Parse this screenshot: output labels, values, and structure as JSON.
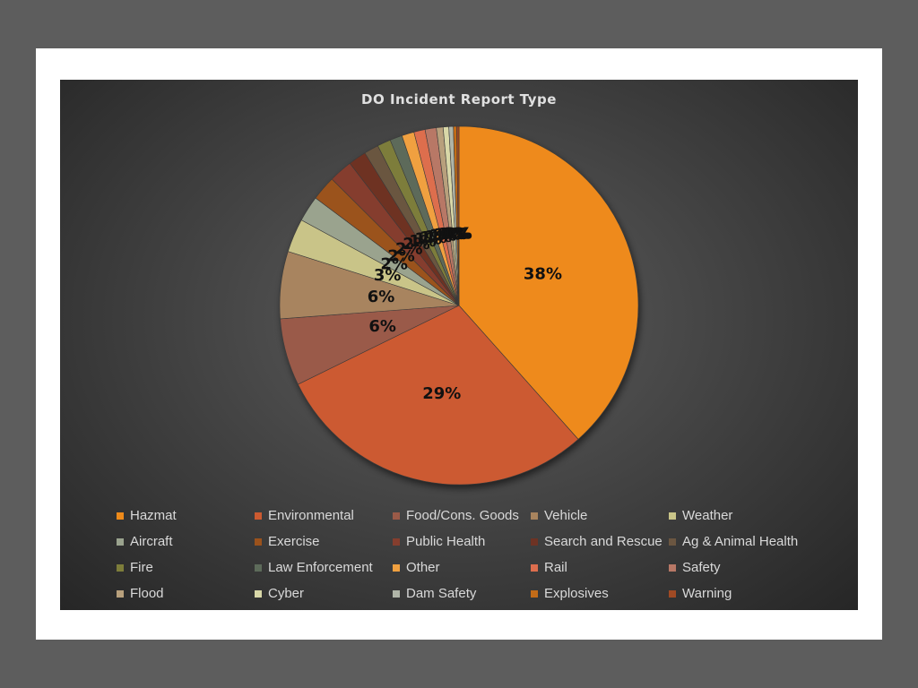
{
  "chart_data": {
    "type": "pie",
    "title": "DO Incident Report Type",
    "legend_position": "bottom",
    "slices": [
      {
        "label": "Hazmat",
        "value": 38,
        "display": "38%",
        "color": "#ee8a1a"
      },
      {
        "label": "Environmental",
        "value": 29,
        "display": "29%",
        "color": "#cc5a30"
      },
      {
        "label": "Food/Cons. Goods",
        "value": 6,
        "display": "6%",
        "color": "#9a5a48"
      },
      {
        "label": "Vehicle",
        "value": 6,
        "display": "6%",
        "color": "#a8845e"
      },
      {
        "label": "Weather",
        "value": 3,
        "display": "3%",
        "color": "#c9c488"
      },
      {
        "label": "Aircraft",
        "value": 2.3,
        "display": "2%",
        "color": "#9aa38e"
      },
      {
        "label": "Exercise",
        "value": 2.2,
        "display": "2%",
        "color": "#9b521c"
      },
      {
        "label": "Public Health",
        "value": 2.1,
        "display": "2%",
        "color": "#853e2e"
      },
      {
        "label": "Search and Rescue",
        "value": 1.6,
        "display": "2%",
        "color": "#6e3324"
      },
      {
        "label": "Ag & Animal Health",
        "value": 1.3,
        "display": "1%",
        "color": "#6b5641"
      },
      {
        "label": "Fire",
        "value": 1.2,
        "display": "1%",
        "color": "#7d7d3a"
      },
      {
        "label": "Law Enforcement",
        "value": 1.1,
        "display": "1%",
        "color": "#5d6b5a"
      },
      {
        "label": "Other",
        "value": 1.1,
        "display": "1%",
        "color": "#f0a040"
      },
      {
        "label": "Rail",
        "value": 1.0,
        "display": "1%",
        "color": "#dd6e4e"
      },
      {
        "label": "Safety",
        "value": 1.0,
        "display": "1%",
        "color": "#b87866"
      },
      {
        "label": "Flood",
        "value": 0.6,
        "display": "1%",
        "color": "#b8a07c"
      },
      {
        "label": "Cyber",
        "value": 0.5,
        "display": "0%",
        "color": "#d9d8a8"
      },
      {
        "label": "Dam Safety",
        "value": 0.4,
        "display": "0%",
        "color": "#b0b5a8"
      },
      {
        "label": "Explosives",
        "value": 0.3,
        "display": "0%",
        "color": "#c36c18"
      },
      {
        "label": "Warning",
        "value": 0.2,
        "display": "0%",
        "color": "#a04a24"
      }
    ]
  }
}
